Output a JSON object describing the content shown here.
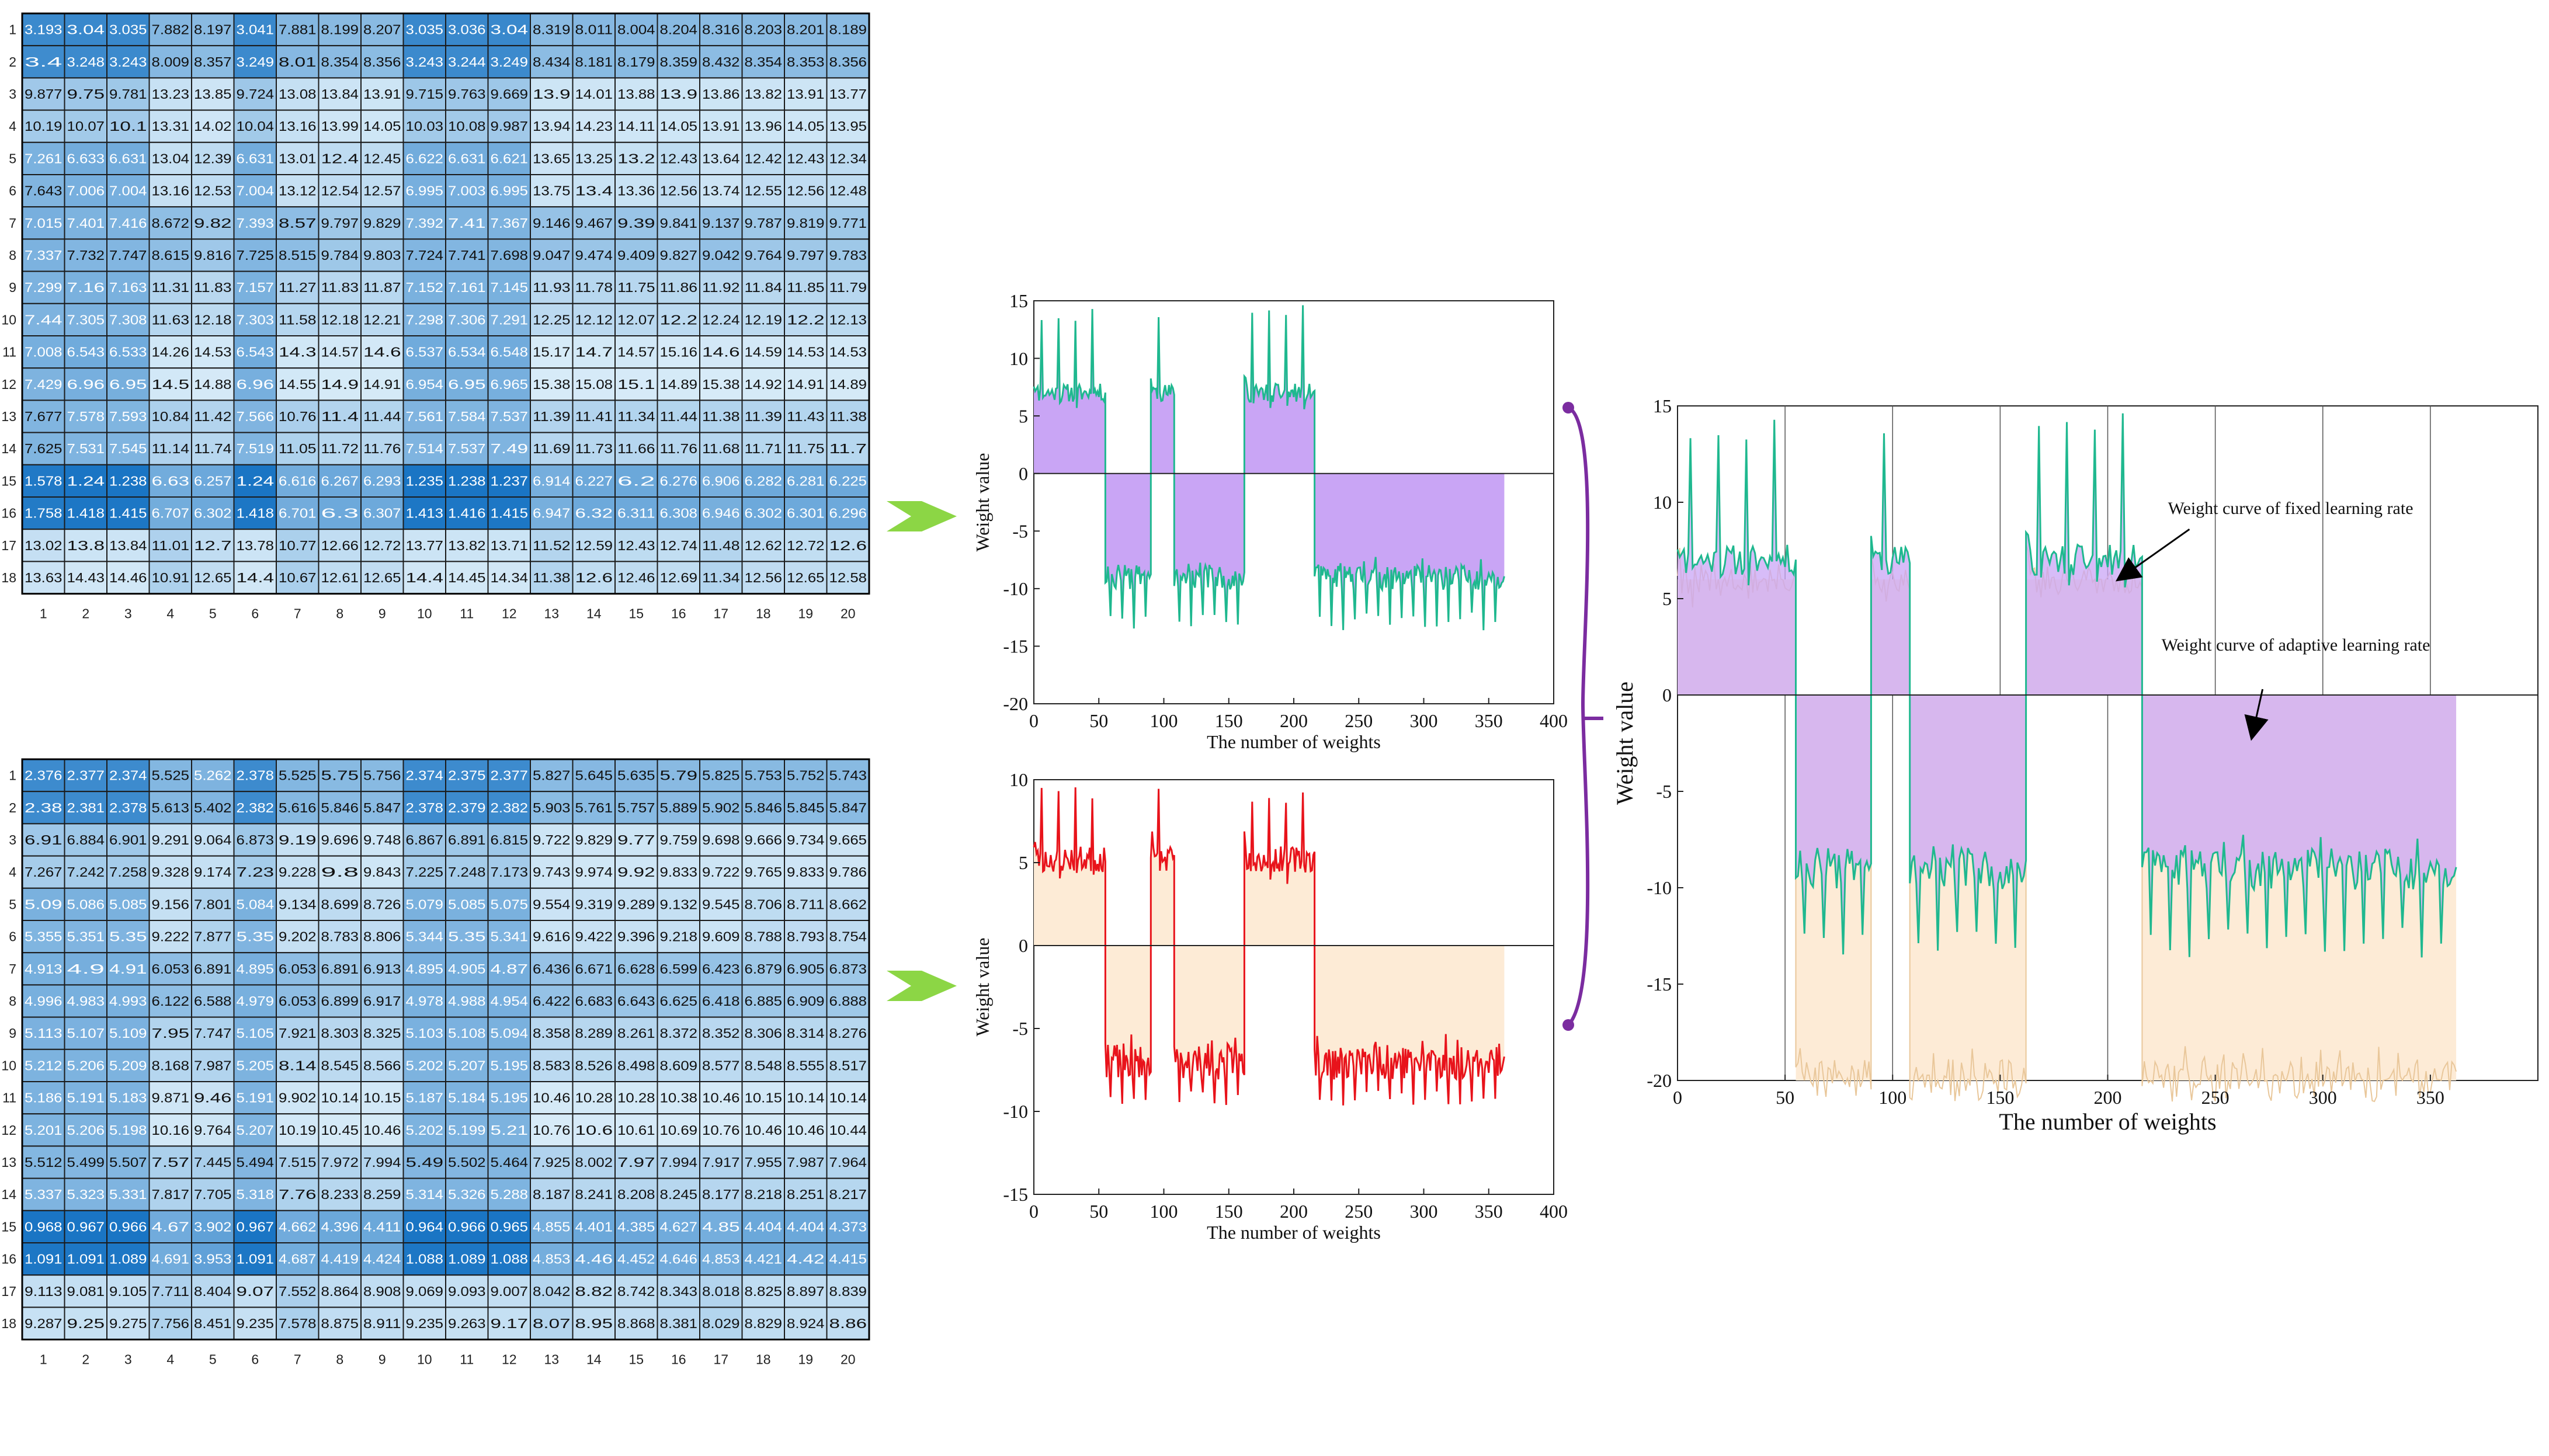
{
  "heatmaps": [
    {
      "id": "top",
      "row_labels": [
        "1",
        "2",
        "3",
        "4",
        "5",
        "6",
        "7",
        "8",
        "9",
        "10",
        "11",
        "12",
        "13",
        "14",
        "15",
        "16",
        "17",
        "18"
      ],
      "col_labels": [
        "1",
        "2",
        "3",
        "4",
        "5",
        "6",
        "7",
        "8",
        "9",
        "10",
        "11",
        "12",
        "13",
        "14",
        "15",
        "16",
        "17",
        "18",
        "19",
        "20"
      ],
      "cells": [
        [
          "3.193",
          "3.04",
          "3.035",
          "7.882",
          "8.197",
          "3.041",
          "7.881",
          "8.199",
          "8.207",
          "3.035",
          "3.036",
          "3.04",
          "8.319",
          "8.011",
          "8.004",
          "8.204",
          "8.316",
          "8.203",
          "8.201",
          "8.189"
        ],
        [
          "3.4",
          "3.248",
          "3.243",
          "8.009",
          "8.357",
          "3.249",
          "8.01",
          "8.354",
          "8.356",
          "3.243",
          "3.244",
          "3.249",
          "8.434",
          "8.181",
          "8.179",
          "8.359",
          "8.432",
          "8.354",
          "8.353",
          "8.356"
        ],
        [
          "9.877",
          "9.75",
          "9.781",
          "13.23",
          "13.85",
          "9.724",
          "13.08",
          "13.84",
          "13.91",
          "9.715",
          "9.763",
          "9.669",
          "13.9",
          "14.01",
          "13.88",
          "13.9",
          "13.86",
          "13.82",
          "13.91",
          "13.77"
        ],
        [
          "10.19",
          "10.07",
          "10.1",
          "13.31",
          "14.02",
          "10.04",
          "13.16",
          "13.99",
          "14.05",
          "10.03",
          "10.08",
          "9.987",
          "13.94",
          "14.23",
          "14.11",
          "14.05",
          "13.91",
          "13.96",
          "14.05",
          "13.95"
        ],
        [
          "7.261",
          "6.633",
          "6.631",
          "13.04",
          "12.39",
          "6.631",
          "13.01",
          "12.4",
          "12.45",
          "6.622",
          "6.631",
          "6.621",
          "13.65",
          "13.25",
          "13.2",
          "12.43",
          "13.64",
          "12.42",
          "12.43",
          "12.34"
        ],
        [
          "7.643",
          "7.006",
          "7.004",
          "13.16",
          "12.53",
          "7.004",
          "13.12",
          "12.54",
          "12.57",
          "6.995",
          "7.003",
          "6.995",
          "13.75",
          "13.4",
          "13.36",
          "12.56",
          "13.74",
          "12.55",
          "12.56",
          "12.48"
        ],
        [
          "7.015",
          "7.401",
          "7.416",
          "8.672",
          "9.82",
          "7.393",
          "8.57",
          "9.797",
          "9.829",
          "7.392",
          "7.41",
          "7.367",
          "9.146",
          "9.467",
          "9.39",
          "9.841",
          "9.137",
          "9.787",
          "9.819",
          "9.771"
        ],
        [
          "7.337",
          "7.732",
          "7.747",
          "8.615",
          "9.816",
          "7.725",
          "8.515",
          "9.784",
          "9.803",
          "7.724",
          "7.741",
          "7.698",
          "9.047",
          "9.474",
          "9.409",
          "9.827",
          "9.042",
          "9.764",
          "9.797",
          "9.783"
        ],
        [
          "7.299",
          "7.16",
          "7.163",
          "11.31",
          "11.83",
          "7.157",
          "11.27",
          "11.83",
          "11.87",
          "7.152",
          "7.161",
          "7.145",
          "11.93",
          "11.78",
          "11.75",
          "11.86",
          "11.92",
          "11.84",
          "11.85",
          "11.79"
        ],
        [
          "7.44",
          "7.305",
          "7.308",
          "11.63",
          "12.18",
          "7.303",
          "11.58",
          "12.18",
          "12.21",
          "7.298",
          "7.306",
          "7.291",
          "12.25",
          "12.12",
          "12.07",
          "12.2",
          "12.24",
          "12.19",
          "12.2",
          "12.13"
        ],
        [
          "7.008",
          "6.543",
          "6.533",
          "14.26",
          "14.53",
          "6.543",
          "14.3",
          "14.57",
          "14.6",
          "6.537",
          "6.534",
          "6.548",
          "15.17",
          "14.7",
          "14.57",
          "15.16",
          "14.6",
          "14.59",
          "14.53",
          "14.53"
        ],
        [
          "7.429",
          "6.96",
          "6.95",
          "14.5",
          "14.88",
          "6.96",
          "14.55",
          "14.9",
          "14.91",
          "6.954",
          "6.95",
          "6.965",
          "15.38",
          "15.08",
          "15.1",
          "14.89",
          "15.38",
          "14.92",
          "14.91",
          "14.89"
        ],
        [
          "7.677",
          "7.578",
          "7.593",
          "10.84",
          "11.42",
          "7.566",
          "10.76",
          "11.4",
          "11.44",
          "7.561",
          "7.584",
          "7.537",
          "11.39",
          "11.41",
          "11.34",
          "11.44",
          "11.38",
          "11.39",
          "11.43",
          "11.38"
        ],
        [
          "7.625",
          "7.531",
          "7.545",
          "11.14",
          "11.74",
          "7.519",
          "11.05",
          "11.72",
          "11.76",
          "7.514",
          "7.537",
          "7.49",
          "11.69",
          "11.73",
          "11.66",
          "11.76",
          "11.68",
          "11.71",
          "11.75",
          "11.7"
        ],
        [
          "1.578",
          "1.24",
          "1.238",
          "6.63",
          "6.257",
          "1.24",
          "6.616",
          "6.267",
          "6.293",
          "1.235",
          "1.238",
          "1.237",
          "6.914",
          "6.227",
          "6.2",
          "6.276",
          "6.906",
          "6.282",
          "6.281",
          "6.225"
        ],
        [
          "1.758",
          "1.418",
          "1.415",
          "6.707",
          "6.302",
          "1.418",
          "6.701",
          "6.3",
          "6.307",
          "1.413",
          "1.416",
          "1.415",
          "6.947",
          "6.32",
          "6.311",
          "6.308",
          "6.946",
          "6.302",
          "6.301",
          "6.296"
        ],
        [
          "13.02",
          "13.8",
          "13.84",
          "11.01",
          "12.7",
          "13.78",
          "10.77",
          "12.66",
          "12.72",
          "13.77",
          "13.82",
          "13.71",
          "11.52",
          "12.59",
          "12.43",
          "12.74",
          "11.48",
          "12.62",
          "12.72",
          "12.6"
        ],
        [
          "13.63",
          "14.43",
          "14.46",
          "10.91",
          "12.65",
          "14.4",
          "10.67",
          "12.61",
          "12.65",
          "14.4",
          "14.45",
          "14.34",
          "11.38",
          "12.6",
          "12.46",
          "12.69",
          "11.34",
          "12.56",
          "12.65",
          "12.58"
        ]
      ]
    },
    {
      "id": "bottom",
      "row_labels": [
        "1",
        "2",
        "3",
        "4",
        "5",
        "6",
        "7",
        "8",
        "9",
        "10",
        "11",
        "12",
        "13",
        "14",
        "15",
        "16",
        "17",
        "18"
      ],
      "col_labels": [
        "1",
        "2",
        "3",
        "4",
        "5",
        "6",
        "7",
        "8",
        "9",
        "10",
        "11",
        "12",
        "13",
        "14",
        "15",
        "16",
        "17",
        "18",
        "19",
        "20"
      ],
      "cells": [
        [
          "2.376",
          "2.377",
          "2.374",
          "5.525",
          "5.262",
          "2.378",
          "5.525",
          "5.75",
          "5.756",
          "2.374",
          "2.375",
          "2.377",
          "5.827",
          "5.645",
          "5.635",
          "5.79",
          "5.825",
          "5.753",
          "5.752",
          "5.743"
        ],
        [
          "2.38",
          "2.381",
          "2.378",
          "5.613",
          "5.402",
          "2.382",
          "5.616",
          "5.846",
          "5.847",
          "2.378",
          "2.379",
          "2.382",
          "5.903",
          "5.761",
          "5.757",
          "5.889",
          "5.902",
          "5.846",
          "5.845",
          "5.847"
        ],
        [
          "6.91",
          "6.884",
          "6.901",
          "9.291",
          "9.064",
          "6.873",
          "9.19",
          "9.696",
          "9.748",
          "6.867",
          "6.891",
          "6.815",
          "9.722",
          "9.829",
          "9.77",
          "9.759",
          "9.698",
          "9.666",
          "9.734",
          "9.665"
        ],
        [
          "7.267",
          "7.242",
          "7.258",
          "9.328",
          "9.174",
          "7.23",
          "9.228",
          "9.8",
          "9.843",
          "7.225",
          "7.248",
          "7.173",
          "9.743",
          "9.974",
          "9.92",
          "9.833",
          "9.722",
          "9.765",
          "9.833",
          "9.786"
        ],
        [
          "5.09",
          "5.086",
          "5.085",
          "9.156",
          "7.801",
          "5.084",
          "9.134",
          "8.699",
          "8.726",
          "5.079",
          "5.085",
          "5.075",
          "9.554",
          "9.319",
          "9.289",
          "9.132",
          "9.545",
          "8.706",
          "8.711",
          "8.662"
        ],
        [
          "5.355",
          "5.351",
          "5.35",
          "9.222",
          "7.877",
          "5.35",
          "9.202",
          "8.783",
          "8.806",
          "5.344",
          "5.35",
          "5.341",
          "9.616",
          "9.422",
          "9.396",
          "9.218",
          "9.609",
          "8.788",
          "8.793",
          "8.754"
        ],
        [
          "4.913",
          "4.9",
          "4.91",
          "6.053",
          "6.891",
          "4.895",
          "6.053",
          "6.891",
          "6.913",
          "4.895",
          "4.905",
          "4.87",
          "6.436",
          "6.671",
          "6.628",
          "6.599",
          "6.423",
          "6.879",
          "6.905",
          "6.873"
        ],
        [
          "4.996",
          "4.983",
          "4.993",
          "6.122",
          "6.588",
          "4.979",
          "6.053",
          "6.899",
          "6.917",
          "4.978",
          "4.988",
          "4.954",
          "6.422",
          "6.683",
          "6.643",
          "6.625",
          "6.418",
          "6.885",
          "6.909",
          "6.888"
        ],
        [
          "5.113",
          "5.107",
          "5.109",
          "7.95",
          "7.747",
          "5.105",
          "7.921",
          "8.303",
          "8.325",
          "5.103",
          "5.108",
          "5.094",
          "8.358",
          "8.289",
          "8.261",
          "8.372",
          "8.352",
          "8.306",
          "8.314",
          "8.276"
        ],
        [
          "5.212",
          "5.206",
          "5.209",
          "8.168",
          "7.987",
          "5.205",
          "8.14",
          "8.545",
          "8.566",
          "5.202",
          "5.207",
          "5.195",
          "8.583",
          "8.526",
          "8.498",
          "8.609",
          "8.577",
          "8.548",
          "8.555",
          "8.517"
        ],
        [
          "5.186",
          "5.191",
          "5.183",
          "9.871",
          "9.46",
          "5.191",
          "9.902",
          "10.14",
          "10.15",
          "5.187",
          "5.184",
          "5.195",
          "10.46",
          "10.28",
          "10.28",
          "10.38",
          "10.46",
          "10.15",
          "10.14",
          "10.14"
        ],
        [
          "5.201",
          "5.206",
          "5.198",
          "10.16",
          "9.764",
          "5.207",
          "10.19",
          "10.45",
          "10.46",
          "5.202",
          "5.199",
          "5.21",
          "10.76",
          "10.6",
          "10.61",
          "10.69",
          "10.76",
          "10.46",
          "10.46",
          "10.44"
        ],
        [
          "5.512",
          "5.499",
          "5.507",
          "7.57",
          "7.445",
          "5.494",
          "7.515",
          "7.972",
          "7.994",
          "5.49",
          "5.502",
          "5.464",
          "7.925",
          "8.002",
          "7.97",
          "7.994",
          "7.917",
          "7.955",
          "7.987",
          "7.964"
        ],
        [
          "5.337",
          "5.323",
          "5.331",
          "7.817",
          "7.705",
          "5.318",
          "7.76",
          "8.233",
          "8.259",
          "5.314",
          "5.326",
          "5.288",
          "8.187",
          "8.241",
          "8.208",
          "8.245",
          "8.177",
          "8.218",
          "8.251",
          "8.217"
        ],
        [
          "0.968",
          "0.967",
          "0.966",
          "4.67",
          "3.902",
          "0.967",
          "4.662",
          "4.396",
          "4.411",
          "0.964",
          "0.966",
          "0.965",
          "4.855",
          "4.401",
          "4.385",
          "4.627",
          "4.85",
          "4.404",
          "4.404",
          "4.373"
        ],
        [
          "1.091",
          "1.091",
          "1.089",
          "4.691",
          "3.953",
          "1.091",
          "4.687",
          "4.419",
          "4.424",
          "1.088",
          "1.089",
          "1.088",
          "4.853",
          "4.46",
          "4.452",
          "4.646",
          "4.853",
          "4.421",
          "4.42",
          "4.415"
        ],
        [
          "9.113",
          "9.081",
          "9.105",
          "7.711",
          "8.404",
          "9.07",
          "7.552",
          "8.864",
          "8.908",
          "9.069",
          "9.093",
          "9.007",
          "8.042",
          "8.82",
          "8.742",
          "8.343",
          "8.018",
          "8.825",
          "8.897",
          "8.839"
        ],
        [
          "9.287",
          "9.25",
          "9.275",
          "7.756",
          "8.451",
          "9.235",
          "7.578",
          "8.875",
          "8.911",
          "9.235",
          "9.263",
          "9.17",
          "8.07",
          "8.95",
          "8.868",
          "8.381",
          "8.029",
          "8.829",
          "8.924",
          "8.86"
        ]
      ]
    }
  ],
  "chart_data": [
    {
      "id": "fixed-rate-plot",
      "type": "line",
      "title": "",
      "xlabel": "The number of weights",
      "ylabel": "Weight value",
      "xlim": [
        0,
        400
      ],
      "ylim": [
        -20,
        15
      ],
      "xticks": [
        0,
        50,
        100,
        150,
        200,
        250,
        300,
        350,
        400
      ],
      "yticks": [
        15,
        10,
        5,
        0,
        -5,
        -10,
        -15,
        -20
      ],
      "segments": [
        {
          "x_start": 0,
          "x_end": 55,
          "baseline": 7,
          "sign": 1
        },
        {
          "x_start": 55,
          "x_end": 90,
          "baseline": -9,
          "sign": -1
        },
        {
          "x_start": 90,
          "x_end": 108,
          "baseline": 7,
          "sign": 1
        },
        {
          "x_start": 108,
          "x_end": 162,
          "baseline": -9,
          "sign": -1
        },
        {
          "x_start": 162,
          "x_end": 216,
          "baseline": 7,
          "sign": 1
        },
        {
          "x_start": 216,
          "x_end": 362,
          "baseline": -9,
          "sign": -1
        }
      ],
      "series": [
        {
          "name": "fixed learning rate",
          "color": "#1fb88f",
          "fill": "#c9a5f5"
        }
      ]
    },
    {
      "id": "adaptive-rate-plot",
      "type": "line",
      "title": "",
      "xlabel": "The number of weights",
      "ylabel": "Weight value",
      "xlim": [
        0,
        400
      ],
      "ylim": [
        -15,
        10
      ],
      "xticks": [
        0,
        50,
        100,
        150,
        200,
        250,
        300,
        350,
        400
      ],
      "yticks": [
        10,
        5,
        0,
        -5,
        -10,
        -15
      ],
      "segments": [
        {
          "x_start": 0,
          "x_end": 55,
          "baseline": 5.2,
          "sign": 1
        },
        {
          "x_start": 55,
          "x_end": 90,
          "baseline": -7,
          "sign": -1
        },
        {
          "x_start": 90,
          "x_end": 108,
          "baseline": 5.2,
          "sign": 1
        },
        {
          "x_start": 108,
          "x_end": 162,
          "baseline": -7,
          "sign": -1
        },
        {
          "x_start": 162,
          "x_end": 216,
          "baseline": 5.2,
          "sign": 1
        },
        {
          "x_start": 216,
          "x_end": 362,
          "baseline": -7,
          "sign": -1
        }
      ],
      "series": [
        {
          "name": "adaptive learning rate",
          "color": "#e8131b",
          "fill": "#fdebd6"
        }
      ]
    },
    {
      "id": "combined-plot",
      "type": "line",
      "title": "",
      "xlabel": "The number of weights",
      "ylabel": "Weight value",
      "xlim": [
        0,
        400
      ],
      "ylim": [
        -20,
        15
      ],
      "xticks": [
        0,
        50,
        100,
        150,
        200,
        250,
        300,
        350
      ],
      "yticks": [
        15,
        10,
        5,
        0,
        -5,
        -10,
        -15,
        -20
      ],
      "vertical_gridlines": [
        50,
        100,
        150,
        200,
        250,
        300,
        350
      ],
      "annotations": [
        {
          "text": "Weight curve of fixed learning rate",
          "points_to_x": 205,
          "points_to_y": 6
        },
        {
          "text": "Weight curve of adaptive learning rate",
          "points_to_x": 267,
          "points_to_y": -2
        }
      ],
      "series": [
        {
          "name": "fixed learning rate",
          "color": "#1fb88f",
          "fill": "#c9a5f5"
        },
        {
          "name": "adaptive learning rate",
          "color": "#e9c79a",
          "fill": "#fdebd6"
        }
      ]
    }
  ],
  "colors": {
    "heat_dark": "#1a75c4",
    "heat_light": "#d7ebf8",
    "arrow_green": "#8cd645",
    "bracket_purple": "#7b2ca0"
  }
}
